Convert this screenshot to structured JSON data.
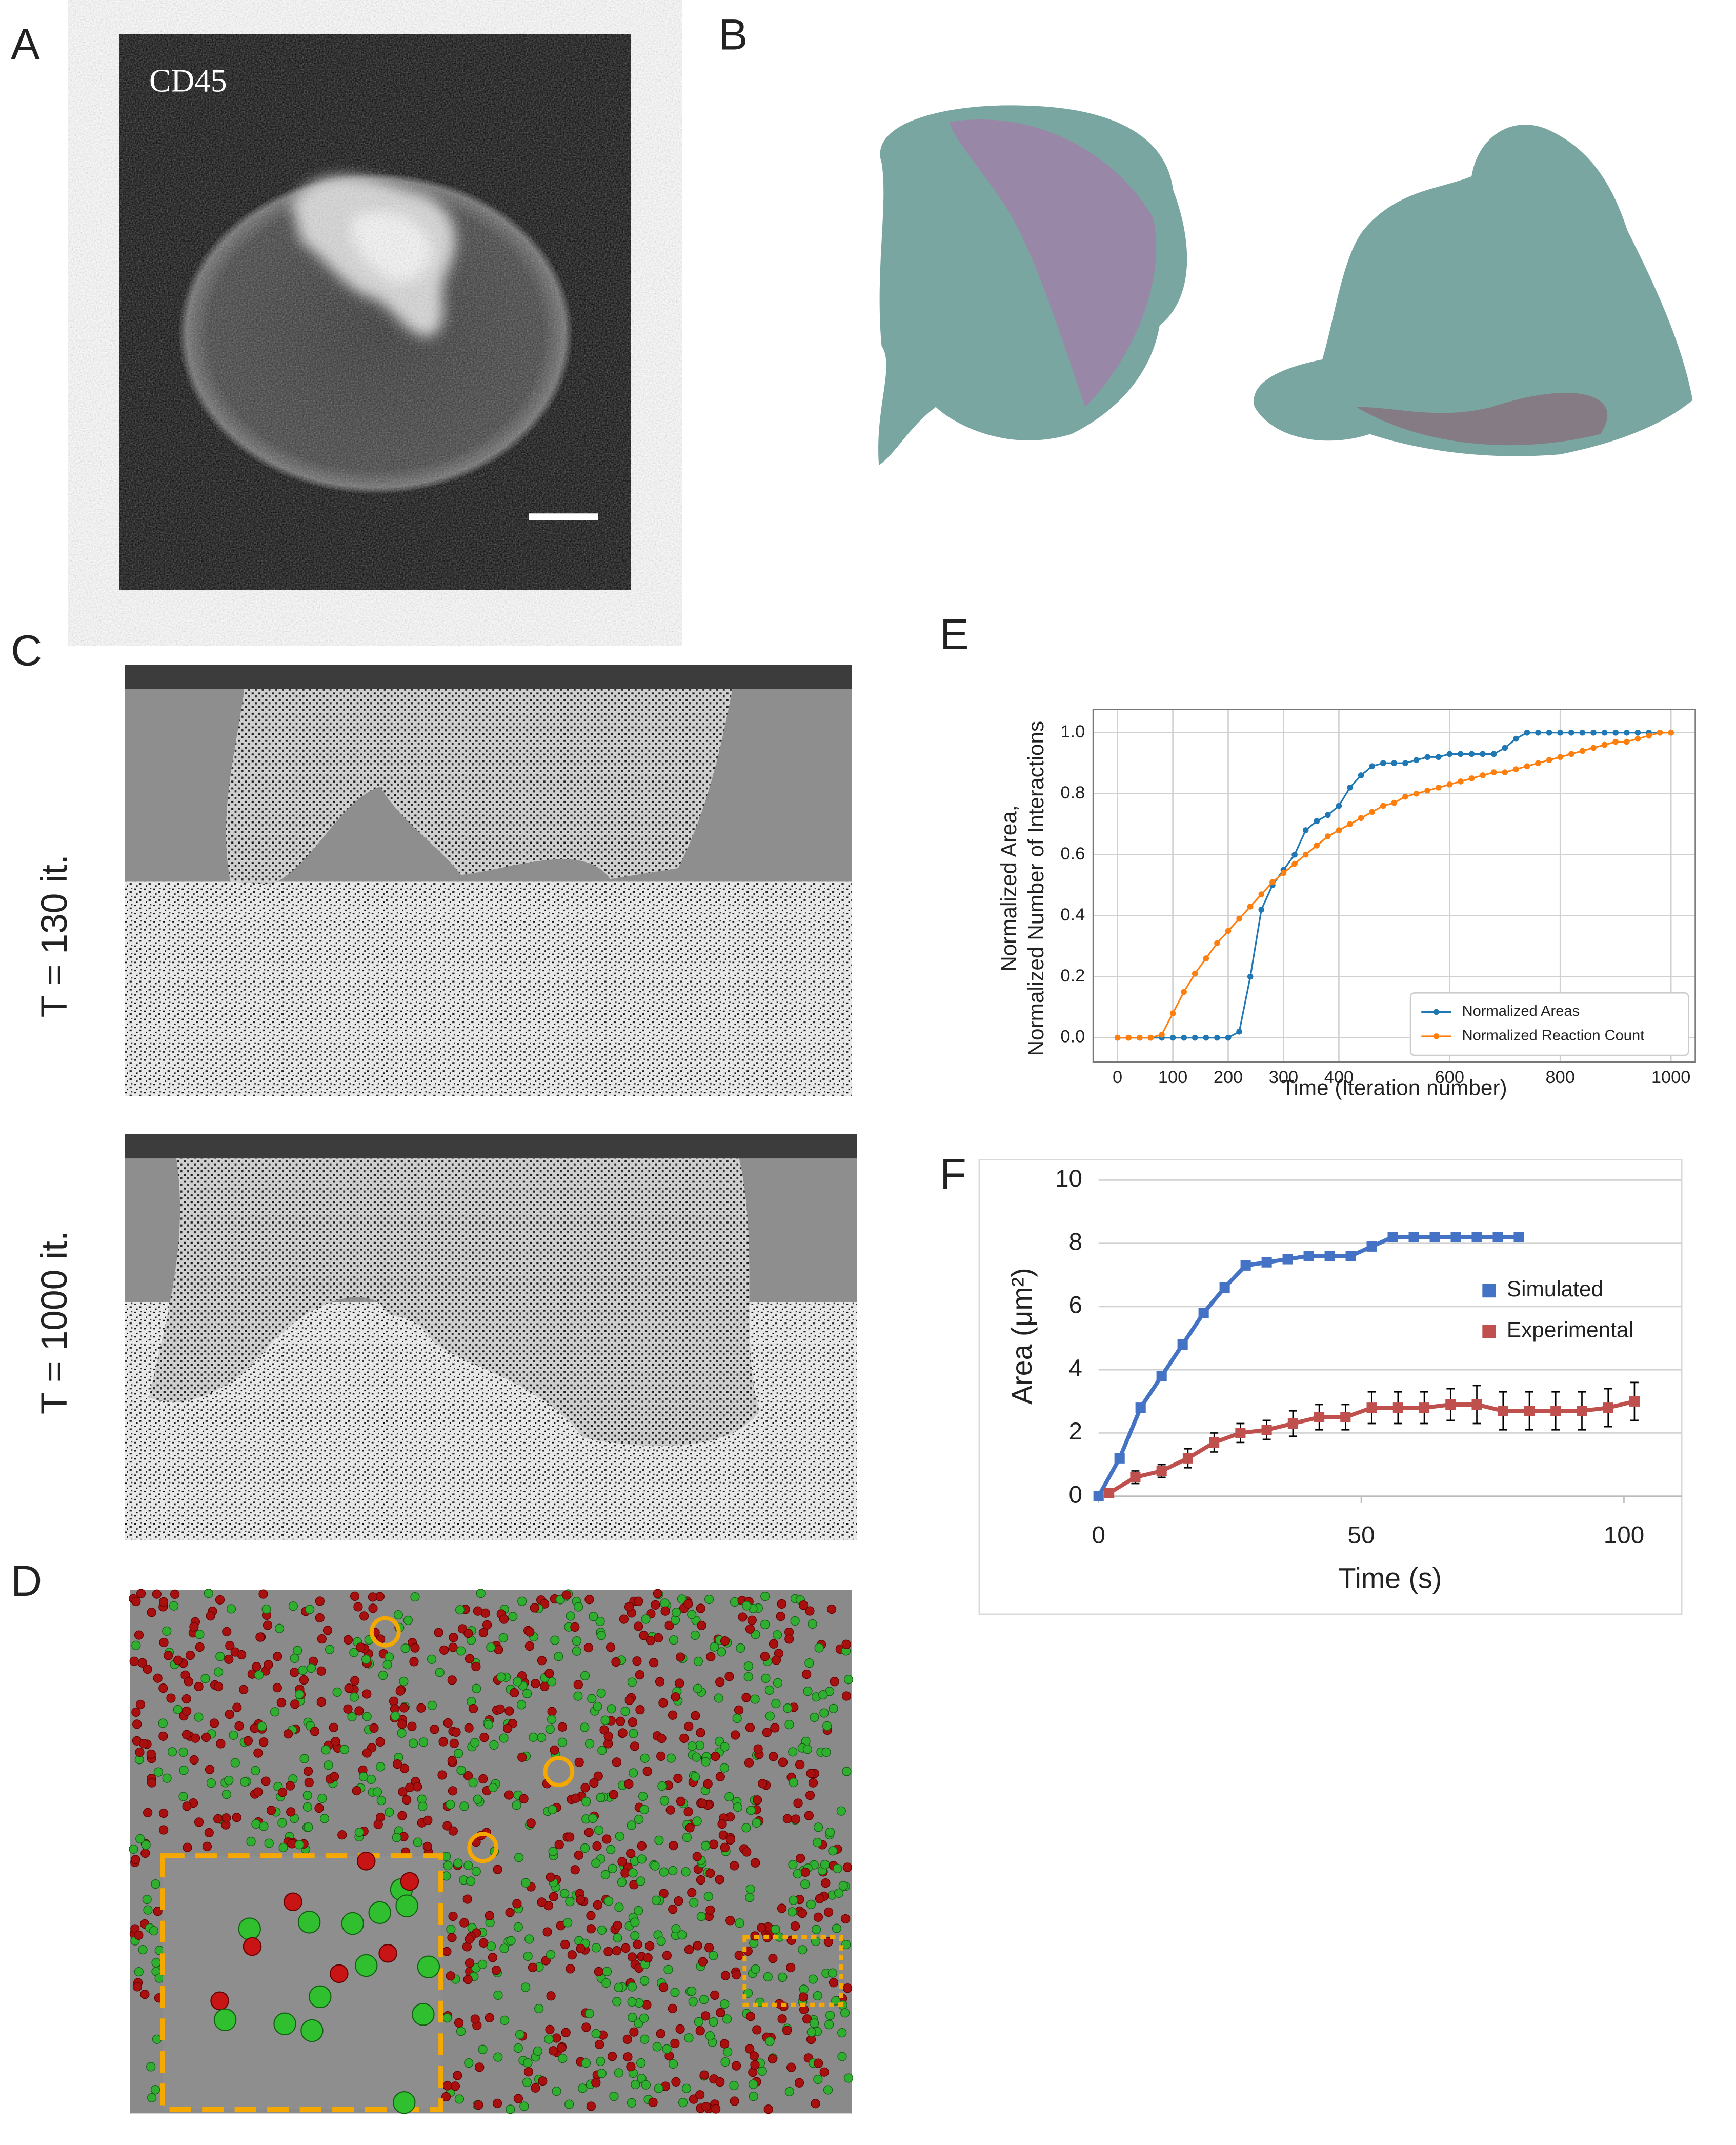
{
  "panel_labels": [
    "A",
    "B",
    "C",
    "D",
    "E",
    "F"
  ],
  "image_label": "CD45",
  "screenshot_labels": [
    "T = 130 it.",
    "T = 1000 it."
  ],
  "chart_data": [
    {
      "type": "line",
      "xlabel": "Time (Iteration number)",
      "ylabel": [
        "Normalized Area,",
        "Normalized Number of Interactions"
      ],
      "x": [
        0,
        20,
        40,
        60,
        80,
        100,
        120,
        140,
        160,
        180,
        200,
        220,
        240,
        260,
        280,
        300,
        320,
        340,
        360,
        380,
        400,
        420,
        440,
        460,
        480,
        500,
        520,
        540,
        560,
        580,
        600,
        620,
        640,
        660,
        680,
        700,
        720,
        740,
        760,
        780,
        800,
        820,
        840,
        860,
        880,
        900,
        920,
        940,
        960,
        980,
        1000
      ],
      "series": [
        {
          "name": "Normalized Areas",
          "color": "#1f77b4",
          "marker": "circle",
          "values": [
            0,
            0,
            0,
            0,
            0,
            0,
            0,
            0,
            0,
            0,
            0,
            0.02,
            0.2,
            0.42,
            0.5,
            0.55,
            0.6,
            0.68,
            0.71,
            0.73,
            0.76,
            0.82,
            0.86,
            0.89,
            0.9,
            0.9,
            0.9,
            0.91,
            0.92,
            0.92,
            0.93,
            0.93,
            0.93,
            0.93,
            0.93,
            0.95,
            0.98,
            1.0,
            1.0,
            1.0,
            1.0,
            1.0,
            1.0,
            1.0,
            1.0,
            1.0,
            1.0,
            1.0,
            1.0,
            1.0,
            1.0
          ]
        },
        {
          "name": "Normalized Reaction Count",
          "color": "#ff7f0e",
          "marker": "circle",
          "values": [
            0,
            0,
            0,
            0,
            0.01,
            0.08,
            0.15,
            0.21,
            0.26,
            0.31,
            0.35,
            0.39,
            0.43,
            0.47,
            0.51,
            0.54,
            0.57,
            0.6,
            0.63,
            0.66,
            0.68,
            0.7,
            0.72,
            0.74,
            0.76,
            0.77,
            0.79,
            0.8,
            0.81,
            0.82,
            0.83,
            0.84,
            0.85,
            0.86,
            0.87,
            0.87,
            0.88,
            0.89,
            0.9,
            0.91,
            0.92,
            0.93,
            0.94,
            0.95,
            0.96,
            0.97,
            0.97,
            0.98,
            0.99,
            1.0,
            1.0
          ]
        }
      ],
      "xlim": [
        -44,
        1044
      ],
      "xticks": [
        0,
        100,
        200,
        300,
        400,
        600,
        800,
        1000
      ],
      "ylim": [
        -0.08,
        1.076
      ],
      "yticks": [
        {
          "value": 0,
          "label": "0.0"
        },
        0.2,
        0.4,
        0.6,
        0.8,
        {
          "value": 1,
          "label": "1.0"
        }
      ],
      "grid": "both",
      "legend": "lower right",
      "legend_frame": true
    },
    {
      "type": "line",
      "xlabel": "Time (s)",
      "ylabel": [
        "Area (μm²)"
      ],
      "series": [
        {
          "name": "Simulated",
          "color": "#4472c4",
          "marker": "square",
          "x": [
            0,
            4,
            8,
            12,
            16,
            20,
            24,
            28,
            32,
            36,
            40,
            44,
            48,
            52,
            56,
            60,
            64,
            68,
            72,
            76,
            80
          ],
          "values": [
            0,
            1.2,
            2.8,
            3.8,
            4.8,
            5.8,
            6.6,
            7.3,
            7.4,
            7.5,
            7.6,
            7.6,
            7.6,
            7.9,
            8.2,
            8.2,
            8.2,
            8.2,
            8.2,
            8.2,
            8.2
          ]
        },
        {
          "name": "Experimental",
          "color": "#c0504d",
          "marker": "square",
          "x": [
            2,
            7,
            12,
            17,
            22,
            27,
            32,
            37,
            42,
            47,
            52,
            57,
            62,
            67,
            72,
            77,
            82,
            87,
            92,
            97,
            102
          ],
          "values": [
            0.1,
            0.6,
            0.8,
            1.2,
            1.7,
            2.0,
            2.1,
            2.3,
            2.5,
            2.5,
            2.8,
            2.8,
            2.8,
            2.9,
            2.9,
            2.7,
            2.7,
            2.7,
            2.7,
            2.8,
            3.0
          ],
          "errors": [
            0.1,
            0.2,
            0.2,
            0.3,
            0.3,
            0.3,
            0.3,
            0.4,
            0.4,
            0.4,
            0.5,
            0.5,
            0.5,
            0.5,
            0.6,
            0.6,
            0.6,
            0.6,
            0.6,
            0.6,
            0.6
          ]
        }
      ],
      "xlim": [
        0,
        111
      ],
      "xticks": [
        0,
        50,
        100
      ],
      "ylim": [
        0,
        10
      ],
      "yticks": [
        0,
        2,
        4,
        6,
        8,
        10
      ],
      "grid": "y",
      "legend": "center right",
      "legend_frame": false
    }
  ]
}
